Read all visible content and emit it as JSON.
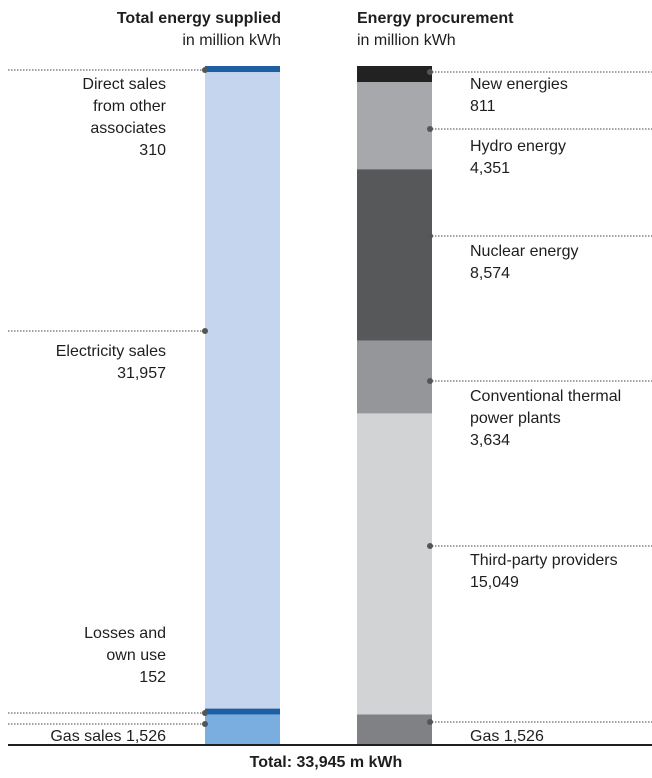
{
  "chart_data": {
    "type": "stacked-bar",
    "unit": "million kWh",
    "left": {
      "title": "Total energy supplied",
      "subtitle": "in million kWh",
      "segments": [
        {
          "label": "Direct sales from other associates",
          "value": 310,
          "value_text": "310",
          "color": "#1c5fa3"
        },
        {
          "label": "Electricity sales",
          "value": 31957,
          "value_text": "31,957",
          "color": "#c6d5ee"
        },
        {
          "label": "Losses and own use",
          "value": 152,
          "value_text": "152",
          "color": "#1c5fa3"
        },
        {
          "label": "Gas sales",
          "value": 1526,
          "value_text": "1,526",
          "color": "#7aaee0"
        }
      ]
    },
    "right": {
      "title": "Energy procurement",
      "subtitle": "in million kWh",
      "segments": [
        {
          "label": "New energies",
          "value": 811,
          "value_text": "811",
          "color": "#222222"
        },
        {
          "label": "Hydro energy",
          "value": 4351,
          "value_text": "4,351",
          "color": "#a7a8ab"
        },
        {
          "label": "Nuclear energy",
          "value": 8574,
          "value_text": "8,574",
          "color": "#57585a"
        },
        {
          "label": "Conventional thermal power plants",
          "value": 3634,
          "value_text": "3,634",
          "color": "#95969a"
        },
        {
          "label": "Third-party providers",
          "value": 15049,
          "value_text": "15,049",
          "color": "#d2d3d5"
        },
        {
          "label": "Gas",
          "value": 1526,
          "value_text": "1,526",
          "color": "#808185"
        }
      ]
    },
    "total_label": "Total: 33,945 m kWh"
  }
}
